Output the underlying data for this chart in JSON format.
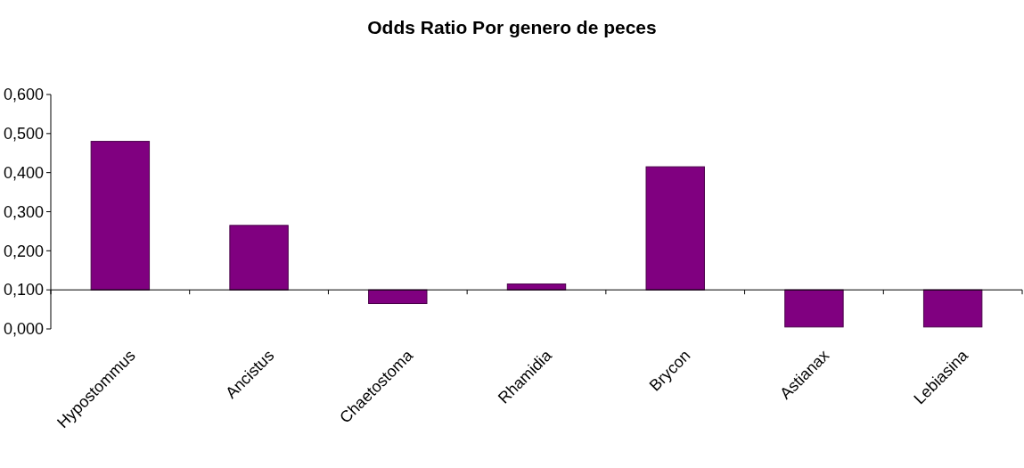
{
  "chart_data": {
    "type": "bar",
    "title": "Odds Ratio Por genero de peces",
    "categories": [
      "Hypostommus",
      "Ancistus",
      "Chaetostoma",
      "Rhamidia",
      "Brycon",
      "Astianax",
      "Lebiasina"
    ],
    "base": [
      0.1,
      0.1,
      0.1,
      0.1,
      0.1,
      0.1,
      0.1
    ],
    "values": [
      0.38,
      0.165,
      -0.035,
      0.015,
      0.315,
      -0.095,
      -0.095
    ],
    "color": "#800080",
    "ylim": [
      0,
      0.6
    ],
    "yticks": [
      {
        "value": 0,
        "label": "0,000"
      },
      {
        "value": 0.1,
        "label": "0,100"
      },
      {
        "value": 0.2,
        "label": "0,200"
      },
      {
        "value": 0.3,
        "label": "0,300"
      },
      {
        "value": 0.4,
        "label": "0,400"
      },
      {
        "value": 0.5,
        "label": "0,500"
      },
      {
        "value": 0.6,
        "label": "0,600"
      }
    ],
    "ref_lines": [
      {
        "axis": "y",
        "value": 0.1,
        "color": "#000000"
      }
    ]
  }
}
